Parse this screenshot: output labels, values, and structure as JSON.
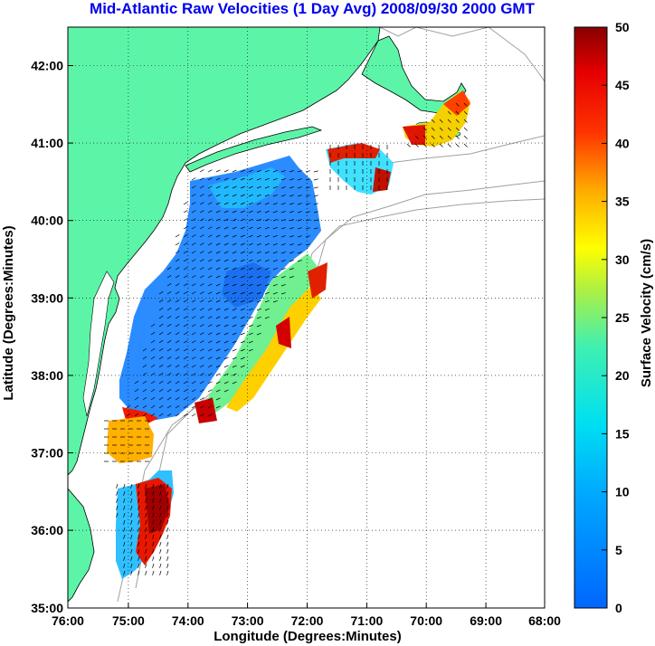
{
  "title": "Mid-Atlantic Raw Velocities (1 Day Avg) 2008/09/30 2000 GMT",
  "x_axis": {
    "label": "Longitude (Degrees:Minutes)",
    "ticks": [
      "76:00",
      "75:00",
      "74:00",
      "73:00",
      "72:00",
      "71:00",
      "70:00",
      "69:00",
      "68:00"
    ]
  },
  "y_axis": {
    "label": "Latitude (Degrees:Minutes)",
    "ticks": [
      "42:00",
      "41:00",
      "40:00",
      "39:00",
      "38:00",
      "37:00",
      "36:00",
      "35:00"
    ]
  },
  "colorbar": {
    "label": "Surface Velocity (cm/s)",
    "ticks": [
      "50",
      "45",
      "40",
      "35",
      "30",
      "25",
      "20",
      "15",
      "10",
      "5",
      "0"
    ],
    "range": [
      0,
      50
    ]
  },
  "colors": {
    "land": "#5cf5a8",
    "bathymetry_contour": "#a0a0a0",
    "title": "#0000ee"
  },
  "map_extent": {
    "lon_range": [
      -76,
      -68
    ],
    "lat_range": [
      35,
      42.5
    ]
  },
  "grid": "dotted"
}
